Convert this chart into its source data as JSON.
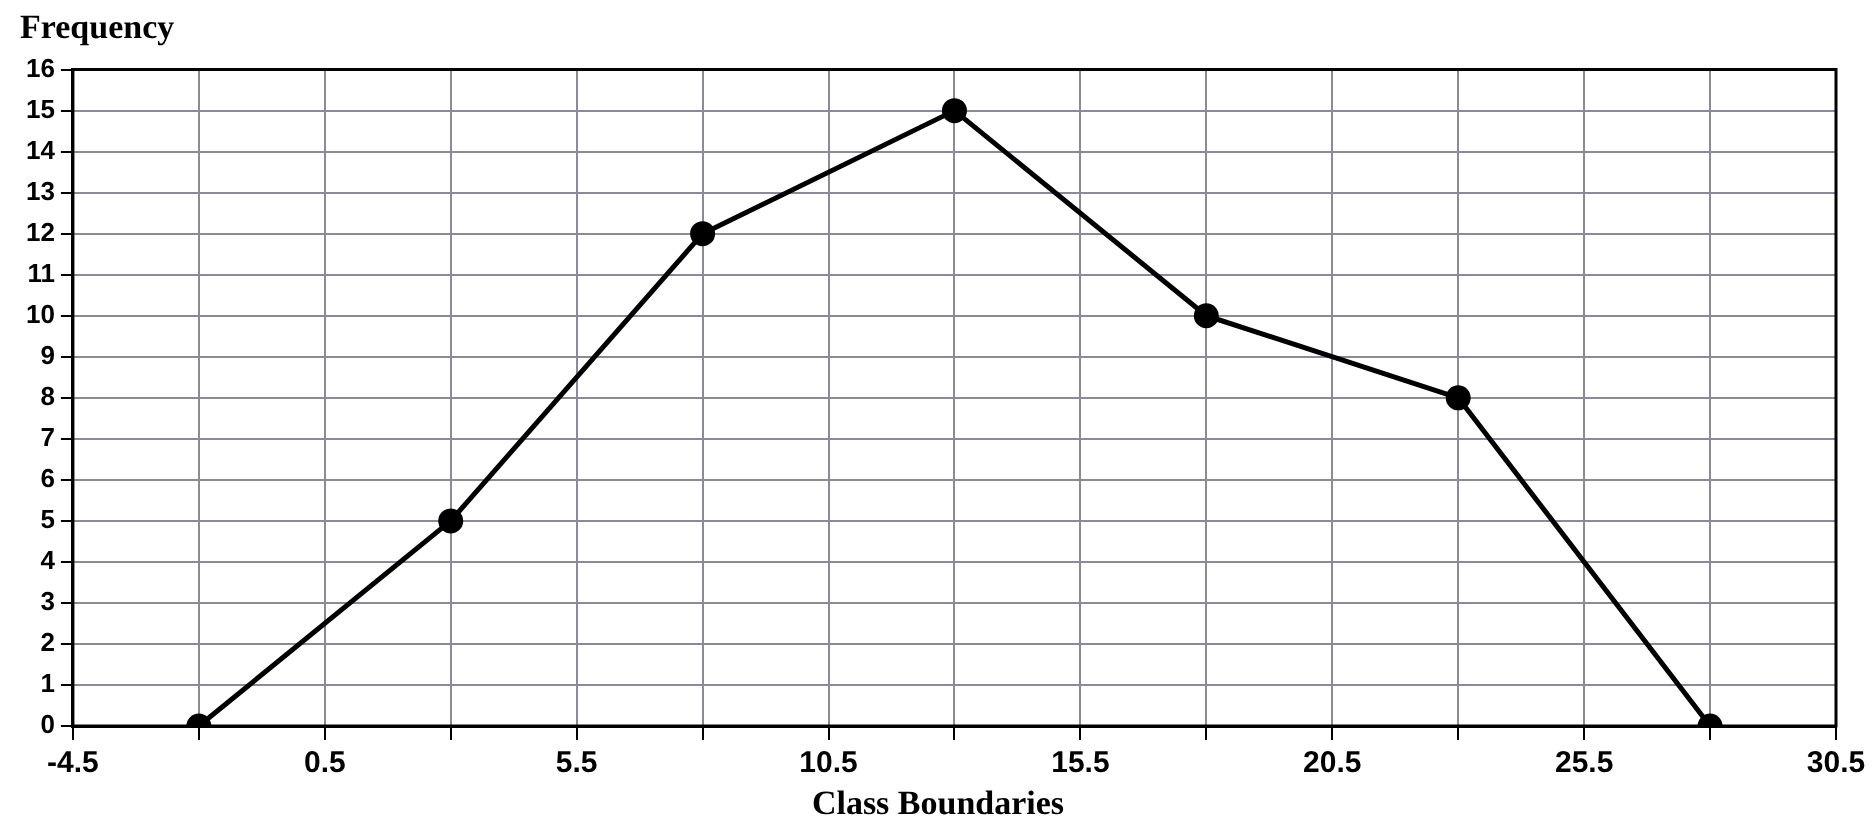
{
  "chart_data": {
    "type": "line",
    "ylabel": "Frequency",
    "xlabel": "Class Boundaries",
    "x": [
      -2,
      3,
      8,
      13,
      18,
      23,
      28
    ],
    "series": [
      {
        "color": "#000000",
        "values": [
          0,
          5,
          12,
          15,
          10,
          8,
          0
        ]
      }
    ],
    "xlim": [
      -4.5,
      30.5
    ],
    "xticks": [
      -4.5,
      {
        "value": -2,
        "label": null
      },
      0.5,
      {
        "value": 3,
        "label": null
      },
      5.5,
      {
        "value": 8,
        "label": null
      },
      10.5,
      {
        "value": 13,
        "label": null
      },
      15.5,
      {
        "value": 18,
        "label": null
      },
      20.5,
      {
        "value": 23,
        "label": null
      },
      25.5,
      {
        "value": 28,
        "label": null
      },
      30.5
    ],
    "ylim": [
      0,
      16
    ],
    "yticks": [
      0,
      1,
      2,
      3,
      4,
      5,
      6,
      7,
      8,
      9,
      10,
      11,
      12,
      13,
      14,
      15,
      16
    ],
    "grid": true,
    "legend": false,
    "marker": "circle",
    "line_style": "solid"
  }
}
